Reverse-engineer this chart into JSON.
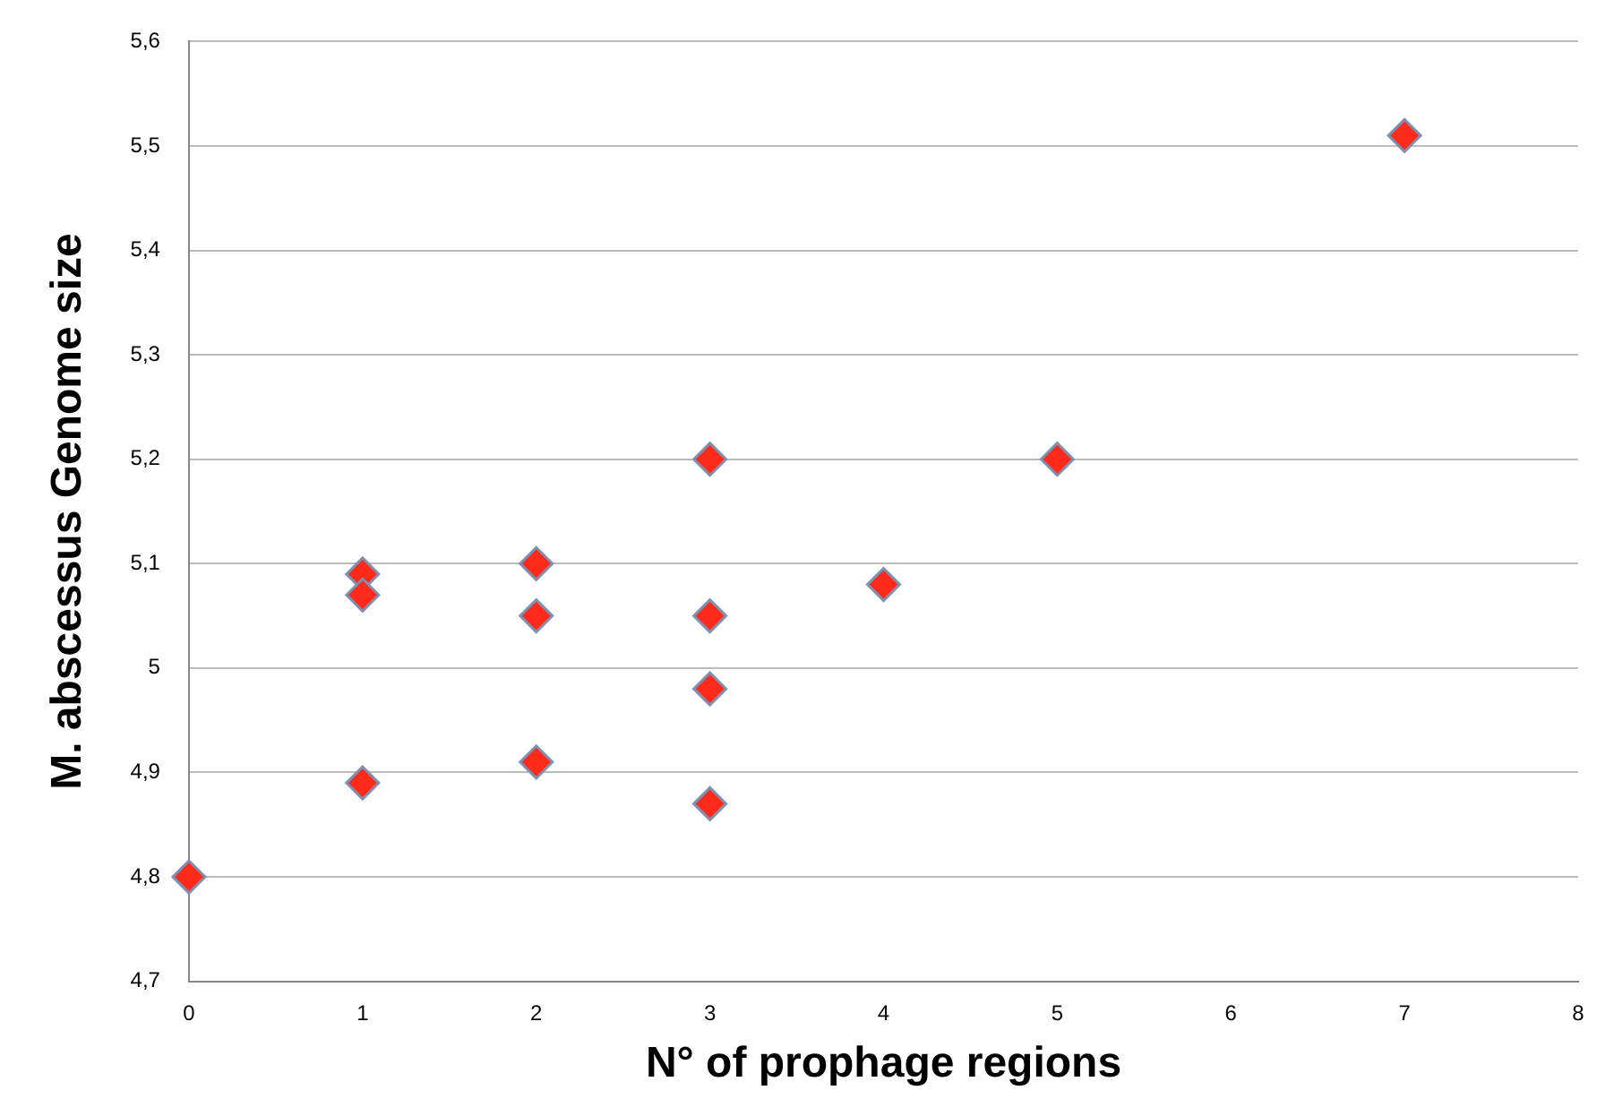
{
  "chart_data": {
    "type": "scatter",
    "xlabel": "N° of prophage regions",
    "ylabel": "M. abscessus Genome size",
    "x": [
      0,
      1,
      1,
      1,
      2,
      2,
      2,
      3,
      3,
      3,
      3,
      4,
      5,
      7
    ],
    "series": [
      {
        "color": "#ff2a1a",
        "values": [
          4.8,
          5.09,
          5.07,
          4.89,
          5.1,
          5.05,
          4.91,
          5.2,
          5.05,
          4.98,
          4.87,
          5.08,
          5.2,
          5.51
        ]
      }
    ],
    "xlim": [
      0,
      8
    ],
    "xticks": [
      0,
      1,
      2,
      3,
      4,
      5,
      6,
      7,
      8
    ],
    "ylim": [
      4.7,
      5.6
    ],
    "yticks": [
      {
        "value": 4.7,
        "label": "4,7"
      },
      {
        "value": 4.8,
        "label": "4,8"
      },
      {
        "value": 4.9,
        "label": "4,9"
      },
      5,
      {
        "value": 5.1,
        "label": "5,1"
      },
      {
        "value": 5.2,
        "label": "5,2"
      },
      {
        "value": 5.3,
        "label": "5,3"
      },
      {
        "value": 5.4,
        "label": "5,4"
      },
      {
        "value": 5.5,
        "label": "5,5"
      },
      {
        "value": 5.6,
        "label": "5,6"
      }
    ],
    "grid": "y",
    "legend": false,
    "marker": "diamond"
  }
}
